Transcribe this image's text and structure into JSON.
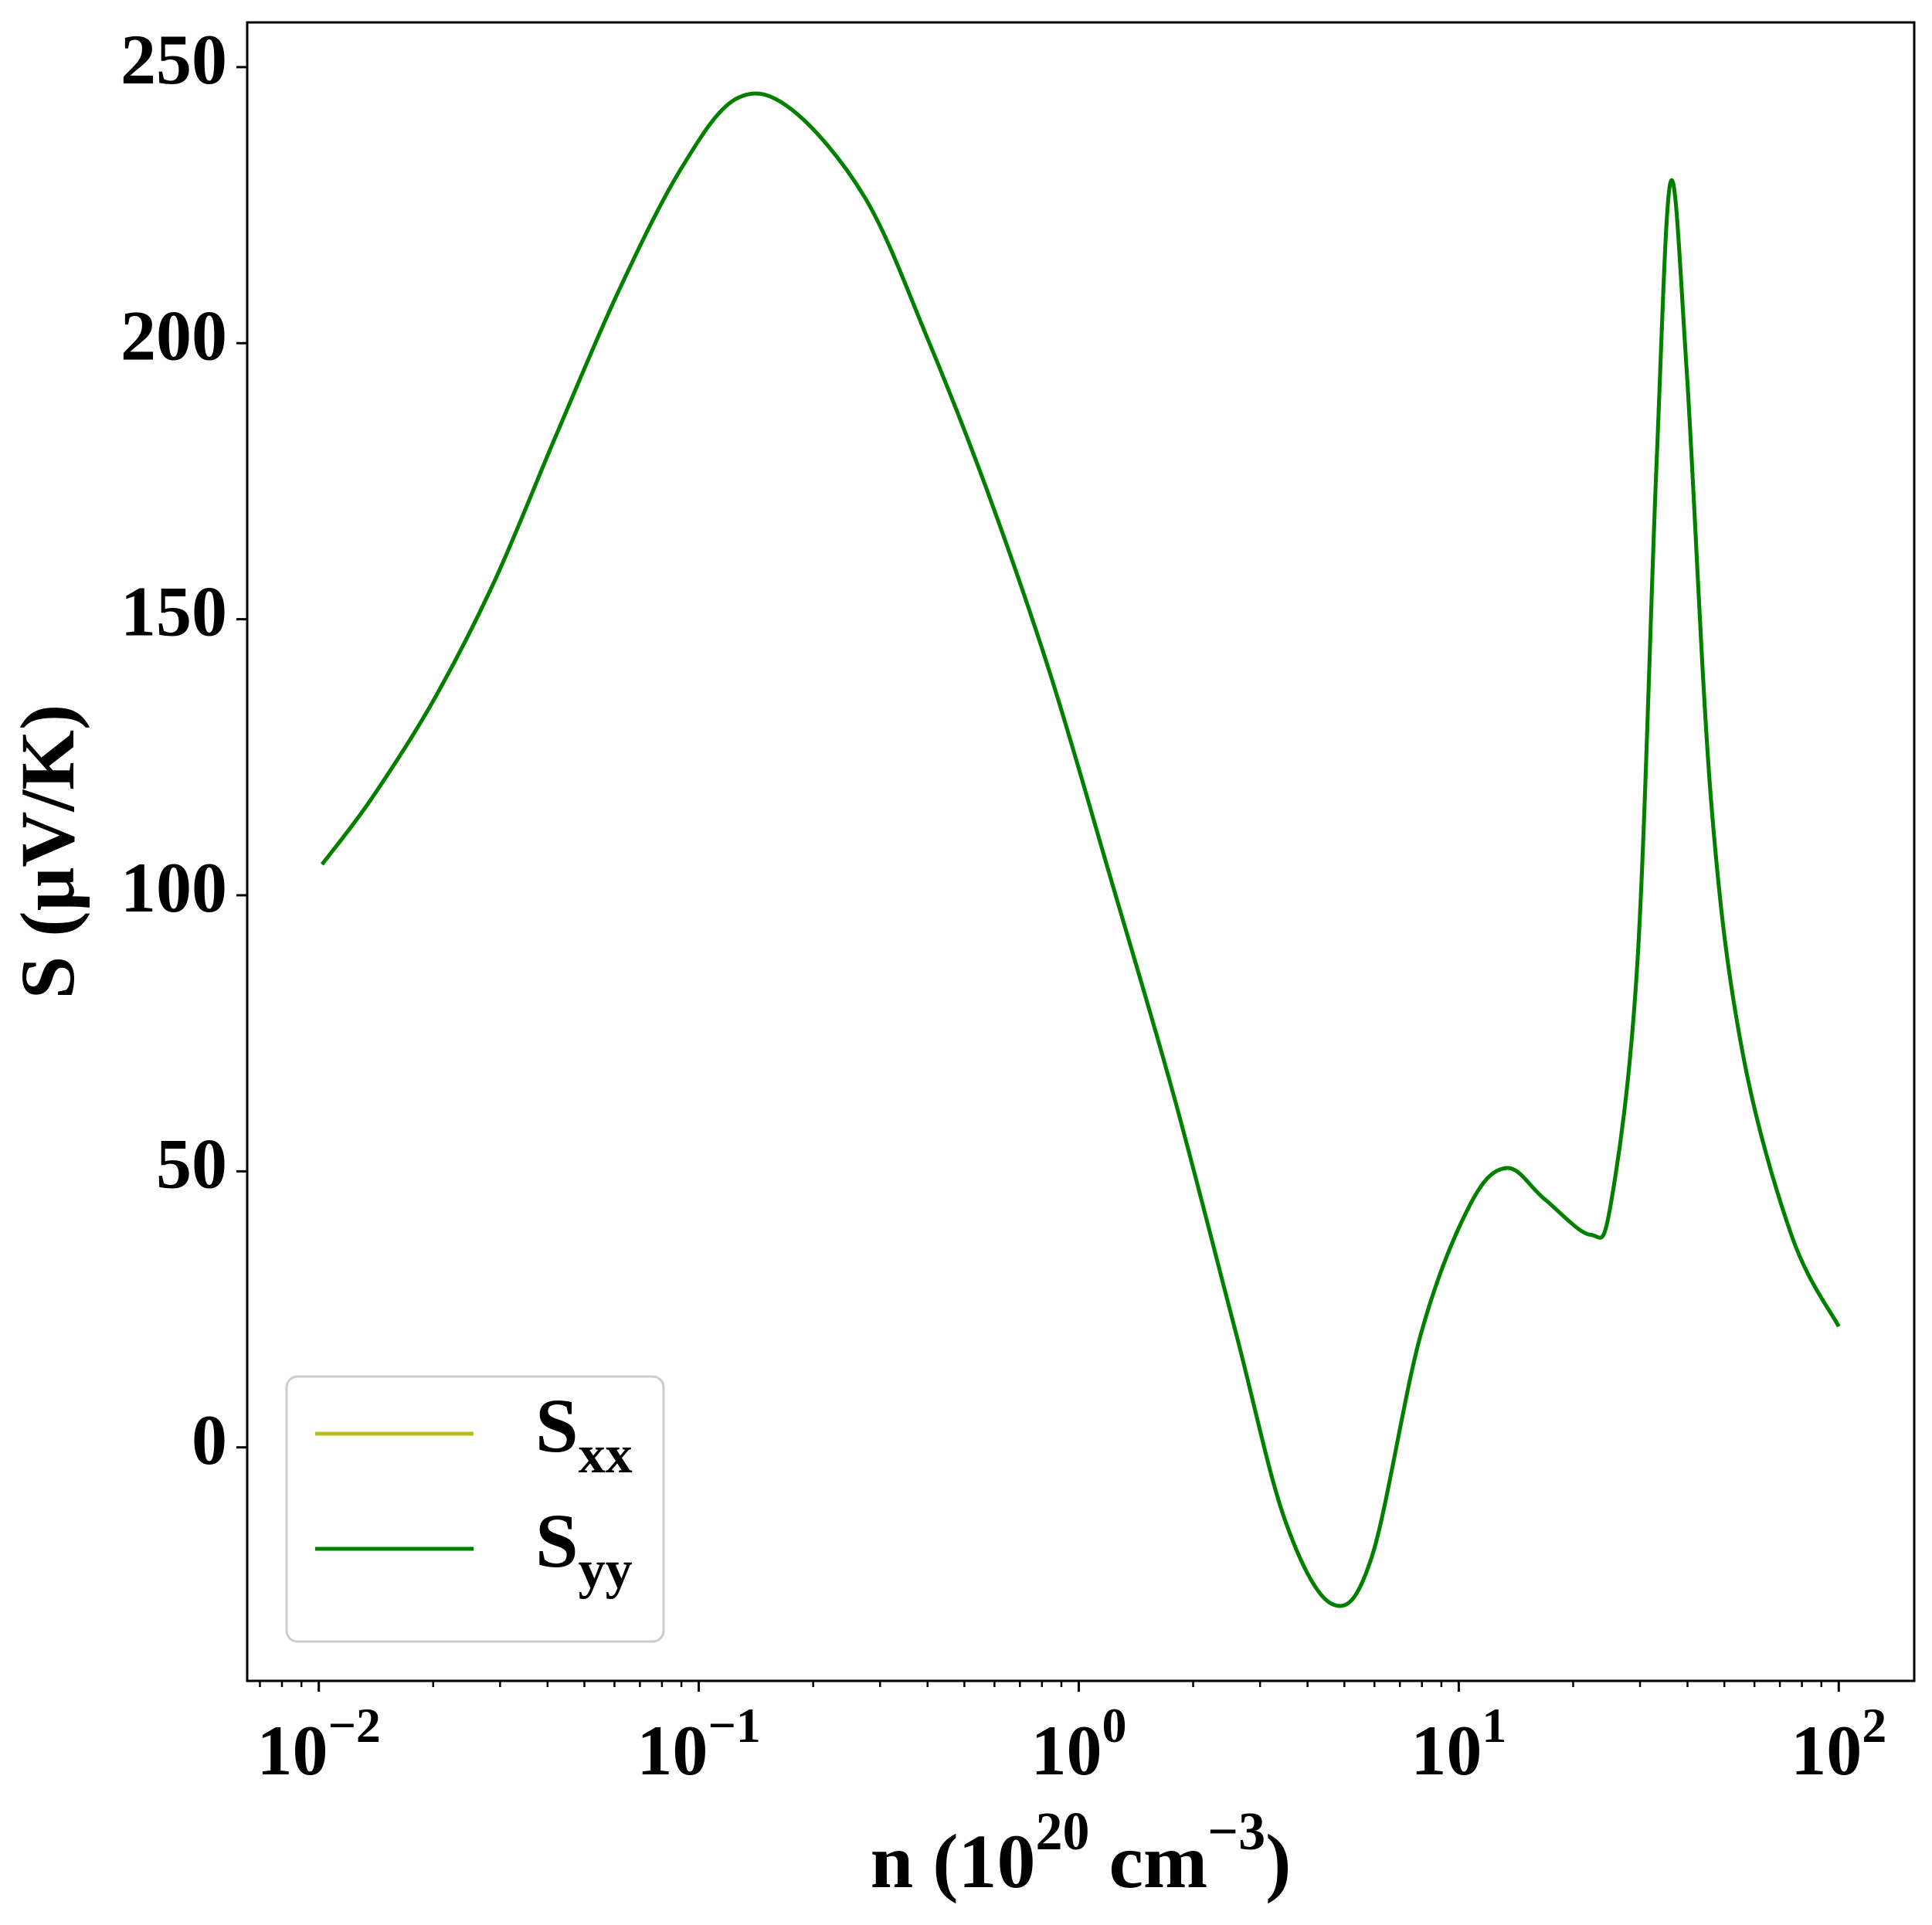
{
  "chart_data": {
    "type": "line",
    "xlabel": [
      "n (10",
      "20",
      " cm",
      "−3",
      ")"
    ],
    "ylabel": "S (μV/K)",
    "xscale": "log",
    "xlim": [
      0.00648,
      158
    ],
    "ylim": [
      -42.3,
      258.1
    ],
    "xticks": [
      {
        "value": 0.01,
        "label": "10",
        "exponent": "−2"
      },
      {
        "value": 0.1,
        "label": "10",
        "exponent": "−1"
      },
      {
        "value": 1,
        "label": "10",
        "exponent": "0"
      },
      {
        "value": 10,
        "label": "10",
        "exponent": "1"
      },
      {
        "value": 100,
        "label": "10",
        "exponent": "2"
      }
    ],
    "xminorticks": [
      0.007,
      0.008,
      0.009,
      0.02,
      0.03,
      0.04,
      0.05,
      0.06,
      0.07,
      0.08,
      0.09,
      0.2,
      0.3,
      0.4,
      0.5,
      0.6,
      0.7,
      0.8,
      0.9,
      2,
      3,
      4,
      5,
      6,
      7,
      8,
      9,
      20,
      30,
      40,
      50,
      60,
      70,
      80,
      90
    ],
    "yticks": [
      0,
      50,
      100,
      150,
      200,
      250
    ],
    "grid": false,
    "legend": "lower left",
    "x": [
      0.0102,
      0.0137,
      0.02,
      0.029,
      0.042,
      0.0612,
      0.0891,
      0.125,
      0.175,
      0.274,
      0.398,
      0.579,
      0.841,
      1.22,
      1.78,
      2.59,
      3.49,
      4.65,
      5.9,
      7.94,
      10.7,
      13.4,
      16.8,
      22.2,
      25.1,
      29.5,
      33.1,
      36.1,
      39.8,
      46.2,
      55.7,
      75.2,
      100
    ],
    "series": [
      {
        "name": "S",
        "subscript": "xx",
        "color": "#bcbd22",
        "values": [
          105.6,
          117.3,
          135.2,
          156.9,
          183.1,
          209.1,
          231.2,
          244.2,
          242.4,
          226.3,
          201.2,
          172.6,
          140.1,
          102.5,
          63.6,
          20.8,
          -13.2,
          -28.4,
          -19.9,
          20.4,
          43.9,
          50.6,
          45.0,
          38.5,
          43.9,
          87.5,
          177.0,
          229.2,
          195.0,
          116.6,
          71.9,
          38.3,
          21.9
        ]
      },
      {
        "name": "S",
        "subscript": "yy",
        "color": "#008000",
        "values": [
          105.6,
          117.3,
          135.2,
          156.9,
          183.1,
          209.1,
          231.2,
          244.2,
          242.4,
          226.3,
          201.2,
          172.6,
          140.1,
          102.5,
          63.6,
          20.8,
          -13.2,
          -28.4,
          -19.9,
          20.4,
          43.9,
          50.6,
          45.0,
          38.5,
          43.9,
          87.5,
          177.0,
          229.2,
          195.0,
          116.6,
          71.9,
          38.3,
          21.9
        ]
      }
    ]
  }
}
